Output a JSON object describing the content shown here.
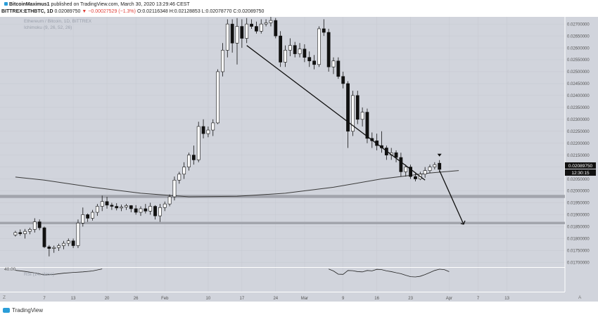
{
  "header": {
    "author": "BitcoinMaximus1",
    "published": "published on TradingView.com, March 30, 2020 13:29:46 CEST",
    "symbol": "BITTREX:ETHBTC, 1D",
    "last": "0.02089750",
    "change": "▼ −0.00027529 (−1.3%)",
    "ohlc": "O:0.02116348 H:0.02128853 L:0.02078770 C:0.02089750"
  },
  "chart": {
    "legend_title": "Ethereum / Bitcoin, 1D, BITTREX",
    "legend_ichimoku": "Ichimoku (9, 26, 52, 26)",
    "rsi_label": "RSI (14, close)",
    "rsi_level": "40.00",
    "price_label": "0.02089750",
    "countdown": "12:30:15",
    "corner_left": "Z",
    "corner_right": "A"
  },
  "footer": {
    "brand": "TradingView"
  },
  "colors": {
    "background": "#d1d4dc",
    "bull": "#ffffff",
    "bear": "#111111",
    "zone": "#9c9fa6",
    "label": "#111111"
  },
  "chart_data": {
    "type": "candlestick",
    "y_axis": [
      "0.02700000",
      "0.02650000",
      "0.02600000",
      "0.02550000",
      "0.02500000",
      "0.02450000",
      "0.02400000",
      "0.02350000",
      "0.02300000",
      "0.02250000",
      "0.02200000",
      "0.02150000",
      "0.02100000",
      "0.02050000",
      "0.02000000",
      "0.01950000",
      "0.01900000",
      "0.01850000",
      "0.01800000",
      "0.01750000",
      "0.01700000"
    ],
    "y_values": [
      0.027,
      0.0265,
      0.026,
      0.0255,
      0.025,
      0.0245,
      0.024,
      0.0235,
      0.023,
      0.0225,
      0.022,
      0.0215,
      0.021,
      0.0205,
      0.02,
      0.0195,
      0.019,
      0.0185,
      0.018,
      0.0175,
      0.017
    ],
    "ylim": [
      0.0168,
      0.0273
    ],
    "x_ticks": [
      "7",
      "13",
      "20",
      "26",
      "Feb",
      "10",
      "17",
      "24",
      "Mar",
      "9",
      "16",
      "23",
      "Apr",
      "7",
      "13"
    ],
    "x_tick_days": [
      0,
      6,
      13,
      19,
      25,
      34,
      41,
      48,
      54,
      62,
      69,
      76,
      84,
      90,
      96
    ],
    "support_zones": [
      [
        0.0197,
        0.01983
      ],
      [
        0.0186,
        0.0187
      ]
    ],
    "trendline": {
      "from": [
        "2020-02-18",
        0.0261
      ],
      "to": [
        "2020-03-26",
        0.02045
      ]
    },
    "projection": {
      "points": [
        [
          "2020-03-29",
          0.02085
        ],
        [
          "2020-04-03",
          0.0186
        ]
      ]
    },
    "ma_line": [
      [
        -6,
        0.02058
      ],
      [
        0,
        0.02045
      ],
      [
        10,
        0.02015
      ],
      [
        20,
        0.0199
      ],
      [
        30,
        0.01975
      ],
      [
        40,
        0.01977
      ],
      [
        50,
        0.0199
      ],
      [
        60,
        0.02015
      ],
      [
        70,
        0.0205
      ],
      [
        80,
        0.02075
      ],
      [
        86,
        0.02085
      ]
    ],
    "candles": [
      [
        -6,
        0.01815,
        0.01832,
        0.01808,
        0.01825
      ],
      [
        -5,
        0.01825,
        0.01838,
        0.01812,
        0.0182
      ],
      [
        -4,
        0.0182,
        0.0184,
        0.018,
        0.0183
      ],
      [
        -3,
        0.0183,
        0.01845,
        0.01818,
        0.01838
      ],
      [
        -2,
        0.01838,
        0.01885,
        0.01825,
        0.0187
      ],
      [
        -1,
        0.0187,
        0.0188,
        0.01835,
        0.01845
      ],
      [
        0,
        0.01845,
        0.0185,
        0.0176,
        0.01765
      ],
      [
        1,
        0.01765,
        0.01772,
        0.01725,
        0.01758
      ],
      [
        2,
        0.01758,
        0.0177,
        0.0174,
        0.01762
      ],
      [
        3,
        0.01762,
        0.01778,
        0.01748,
        0.0177
      ],
      [
        4,
        0.0177,
        0.0179,
        0.01755,
        0.0178
      ],
      [
        5,
        0.0178,
        0.018,
        0.01768,
        0.0179
      ],
      [
        6,
        0.0179,
        0.018,
        0.0176,
        0.0177
      ],
      [
        7,
        0.0177,
        0.0188,
        0.0176,
        0.01865
      ],
      [
        8,
        0.01865,
        0.0193,
        0.0185,
        0.019
      ],
      [
        9,
        0.019,
        0.01905,
        0.0187,
        0.01885
      ],
      [
        10,
        0.01885,
        0.0192,
        0.01875,
        0.0191
      ],
      [
        11,
        0.0191,
        0.01945,
        0.01895,
        0.01935
      ],
      [
        12,
        0.01935,
        0.0198,
        0.01915,
        0.01955
      ],
      [
        13,
        0.01955,
        0.01975,
        0.01925,
        0.0194
      ],
      [
        14,
        0.0194,
        0.0195,
        0.0192,
        0.01935
      ],
      [
        15,
        0.01935,
        0.01948,
        0.01918,
        0.01928
      ],
      [
        16,
        0.01928,
        0.01942,
        0.01915,
        0.01932
      ],
      [
        17,
        0.01932,
        0.01945,
        0.0192,
        0.01938
      ],
      [
        18,
        0.01938,
        0.0194,
        0.0191,
        0.01925
      ],
      [
        19,
        0.01925,
        0.0194,
        0.019,
        0.0191
      ],
      [
        20,
        0.0191,
        0.01935,
        0.01895,
        0.01925
      ],
      [
        21,
        0.01925,
        0.01945,
        0.01905,
        0.01915
      ],
      [
        22,
        0.01915,
        0.0195,
        0.019,
        0.01935
      ],
      [
        23,
        0.01935,
        0.0194,
        0.0188,
        0.01895
      ],
      [
        24,
        0.01895,
        0.01945,
        0.0187,
        0.0193
      ],
      [
        25,
        0.0193,
        0.01955,
        0.01915,
        0.01945
      ],
      [
        26,
        0.01945,
        0.01985,
        0.01935,
        0.01975
      ],
      [
        27,
        0.01975,
        0.0206,
        0.0196,
        0.02045
      ],
      [
        28,
        0.02045,
        0.0208,
        0.0203,
        0.0207
      ],
      [
        29,
        0.0207,
        0.0212,
        0.0205,
        0.021
      ],
      [
        30,
        0.021,
        0.0216,
        0.02085,
        0.0215
      ],
      [
        31,
        0.0215,
        0.0219,
        0.0211,
        0.0213
      ],
      [
        32,
        0.0213,
        0.0229,
        0.0212,
        0.0227
      ],
      [
        33,
        0.0227,
        0.023,
        0.0222,
        0.0224
      ],
      [
        34,
        0.0224,
        0.0227,
        0.02225,
        0.02255
      ],
      [
        35,
        0.02255,
        0.023,
        0.0223,
        0.02285
      ],
      [
        36,
        0.02285,
        0.0251,
        0.0228,
        0.025
      ],
      [
        37,
        0.025,
        0.0262,
        0.0248,
        0.0259
      ],
      [
        38,
        0.0259,
        0.0272,
        0.0256,
        0.027
      ],
      [
        39,
        0.027,
        0.0272,
        0.0258,
        0.0262
      ],
      [
        40,
        0.0262,
        0.02725,
        0.0253,
        0.0269
      ],
      [
        41,
        0.0269,
        0.0272,
        0.026,
        0.0264
      ],
      [
        42,
        0.0264,
        0.02725,
        0.0262,
        0.027
      ],
      [
        43,
        0.027,
        0.0272,
        0.0268,
        0.0269
      ],
      [
        44,
        0.0269,
        0.0271,
        0.0266,
        0.0267
      ],
      [
        45,
        0.0267,
        0.0272,
        0.0266,
        0.027
      ],
      [
        46,
        0.027,
        0.0272,
        0.0269,
        0.02705
      ],
      [
        47,
        0.02705,
        0.0273,
        0.0269,
        0.02715
      ],
      [
        48,
        0.02715,
        0.02725,
        0.0264,
        0.0265
      ],
      [
        49,
        0.0265,
        0.0267,
        0.0252,
        0.0254
      ],
      [
        50,
        0.0254,
        0.0261,
        0.0252,
        0.0259
      ],
      [
        51,
        0.0259,
        0.0264,
        0.02565,
        0.0261
      ],
      [
        52,
        0.0261,
        0.02625,
        0.0256,
        0.02575
      ],
      [
        53,
        0.02575,
        0.0262,
        0.0256,
        0.02595
      ],
      [
        54,
        0.02595,
        0.02615,
        0.0254,
        0.0256
      ],
      [
        55,
        0.0256,
        0.02585,
        0.0252,
        0.02545
      ],
      [
        56,
        0.02545,
        0.0257,
        0.0251,
        0.0253
      ],
      [
        57,
        0.0253,
        0.0269,
        0.0252,
        0.0268
      ],
      [
        58,
        0.0268,
        0.0272,
        0.0265,
        0.02665
      ],
      [
        59,
        0.02665,
        0.0268,
        0.025,
        0.0252
      ],
      [
        60,
        0.0252,
        0.0256,
        0.0249,
        0.02545
      ],
      [
        61,
        0.02545,
        0.0256,
        0.0247,
        0.0248
      ],
      [
        62,
        0.0248,
        0.025,
        0.0243,
        0.0245
      ],
      [
        63,
        0.0245,
        0.0246,
        0.0218,
        0.0225
      ],
      [
        64,
        0.0225,
        0.0242,
        0.0223,
        0.024
      ],
      [
        65,
        0.024,
        0.0242,
        0.0228,
        0.023
      ],
      [
        66,
        0.023,
        0.0235,
        0.0227,
        0.0233
      ],
      [
        67,
        0.0233,
        0.02345,
        0.022,
        0.0222
      ],
      [
        68,
        0.0222,
        0.02245,
        0.0218,
        0.0221
      ],
      [
        69,
        0.0221,
        0.0224,
        0.0217,
        0.0219
      ],
      [
        70,
        0.0219,
        0.0225,
        0.0216,
        0.0218
      ],
      [
        71,
        0.0218,
        0.0219,
        0.0213,
        0.0215
      ],
      [
        72,
        0.0215,
        0.0218,
        0.0213,
        0.0216
      ],
      [
        73,
        0.0216,
        0.0217,
        0.0212,
        0.0214
      ],
      [
        74,
        0.0214,
        0.0216,
        0.0206,
        0.0208
      ],
      [
        75,
        0.0208,
        0.0211,
        0.0206,
        0.021
      ],
      [
        76,
        0.021,
        0.0211,
        0.0205,
        0.0206
      ],
      [
        77,
        0.0206,
        0.02075,
        0.0204,
        0.0205
      ],
      [
        78,
        0.0205,
        0.0208,
        0.02045,
        0.0207
      ],
      [
        79,
        0.0207,
        0.021,
        0.02055,
        0.02085
      ],
      [
        80,
        0.02085,
        0.0211,
        0.02075,
        0.021
      ],
      [
        81,
        0.021,
        0.0212,
        0.0209,
        0.0211
      ],
      [
        82,
        0.02116,
        0.02129,
        0.02079,
        0.0209
      ]
    ],
    "rsi": [
      [
        -6,
        37.6
      ],
      [
        -4,
        35.6
      ],
      [
        -2,
        33.0
      ],
      [
        0,
        29.6
      ],
      [
        2,
        30.5
      ],
      [
        4,
        32.5
      ],
      [
        6,
        33.8
      ],
      [
        8,
        34.8
      ],
      [
        10,
        36.4
      ],
      [
        12,
        40.0
      ],
      [
        59,
        39.8
      ],
      [
        60,
        36.4
      ],
      [
        61,
        30.8
      ],
      [
        62,
        30.5
      ],
      [
        63,
        37.3
      ],
      [
        64,
        36.9
      ],
      [
        65,
        35.3
      ],
      [
        66,
        34.8
      ],
      [
        67,
        37.3
      ],
      [
        68,
        36.6
      ],
      [
        69,
        39.3
      ],
      [
        70,
        38.8
      ],
      [
        71,
        36.6
      ],
      [
        72,
        35.3
      ],
      [
        73,
        33.3
      ],
      [
        74,
        31.7
      ],
      [
        75,
        28.9
      ],
      [
        76,
        26.4
      ],
      [
        77,
        25.9
      ],
      [
        78,
        27.1
      ],
      [
        79,
        30.1
      ],
      [
        80,
        33.7
      ],
      [
        81,
        37.3
      ],
      [
        82,
        39.5
      ],
      [
        83,
        38.8
      ],
      [
        84,
        35.2
      ]
    ],
    "rsi_range": [
      0,
      42
    ]
  }
}
